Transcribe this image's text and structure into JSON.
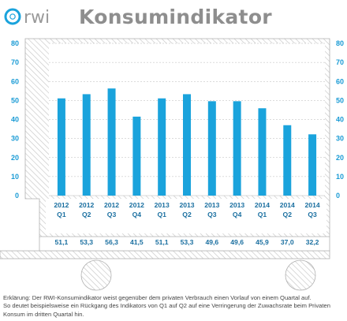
{
  "header": {
    "logo_text": "rwi",
    "title": "Konsumindikator"
  },
  "chart_data": {
    "type": "bar",
    "title": "Konsumindikator",
    "categories": [
      {
        "year": "2012",
        "quarter": "Q1"
      },
      {
        "year": "2012",
        "quarter": "Q2"
      },
      {
        "year": "2012",
        "quarter": "Q3"
      },
      {
        "year": "2012",
        "quarter": "Q4"
      },
      {
        "year": "2013",
        "quarter": "Q1"
      },
      {
        "year": "2013",
        "quarter": "Q2"
      },
      {
        "year": "2013",
        "quarter": "Q3"
      },
      {
        "year": "2013",
        "quarter": "Q4"
      },
      {
        "year": "2014",
        "quarter": "Q1"
      },
      {
        "year": "2014",
        "quarter": "Q2"
      },
      {
        "year": "2014",
        "quarter": "Q3"
      }
    ],
    "values": [
      51.1,
      53.3,
      56.3,
      41.5,
      51.1,
      53.3,
      49.6,
      49.6,
      45.9,
      37.0,
      32.2
    ],
    "value_labels": [
      "51,1",
      "53,3",
      "56,3",
      "41,5",
      "51,1",
      "53,3",
      "49,6",
      "49,6",
      "45,9",
      "37,0",
      "32,2"
    ],
    "ylim": [
      0,
      80
    ],
    "yticks": [
      0,
      10,
      20,
      30,
      40,
      50,
      60,
      70,
      80
    ],
    "grid": true,
    "colors": {
      "bar": "#1aa3dc",
      "axis_text": "#1a9bd5",
      "label_text": "#1a6fa0",
      "grid": "#b8b8b8",
      "hatch": "#c4c4c4"
    }
  },
  "caption": {
    "line1": "Erklärung: Der RWI-Konsumindikator weist gegenüber dem privaten Verbrauch einen Vorlauf von einem Quartal auf.",
    "line2": "So deutet beispielsweise ein Rückgang des Indikators von Q1 auf Q2 auf eine Verringerung der Zuwachsrate beim Privaten",
    "line3": "Konsum im dritten Quartal hin."
  }
}
